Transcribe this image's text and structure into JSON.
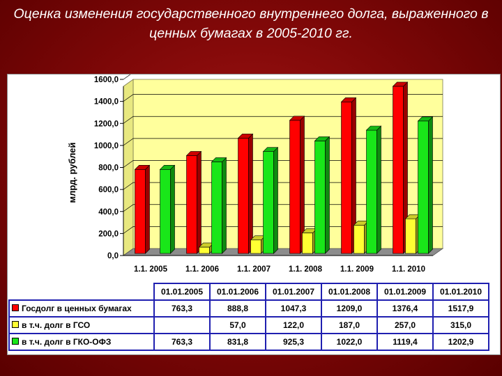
{
  "title": "Оценка изменения государственного внутреннего долга, выраженного в ценных бумагах в 2005-2010 гг.",
  "colors": {
    "red": "#ff0000",
    "yellow": "#ffff33",
    "green": "#19e619",
    "plot_bg": "#ffff9c",
    "floor": "#8c8c8c",
    "table_border": "#1f1fb0"
  },
  "chart_data": {
    "type": "bar",
    "ylabel": "млрд. рублей",
    "ylim": [
      0,
      1600
    ],
    "yticks": [
      "0,0",
      "200,0",
      "400,0",
      "600,0",
      "800,0",
      "1000,0",
      "1200,0",
      "1400,0",
      "1600,0"
    ],
    "categories": [
      "1.1. 2005",
      "1.1. 2006",
      "1.1. 2007",
      "1.1. 2008",
      "1.1. 2009",
      "1.1. 2010"
    ],
    "series": [
      {
        "name": "Госдолг в ценных бумагах",
        "color": "#ff0000",
        "values": [
          763.3,
          888.8,
          1047.3,
          1209.0,
          1376.4,
          1517.9
        ]
      },
      {
        "name": "в т.ч. долг в ГСО",
        "color": "#ffff33",
        "values": [
          null,
          57.0,
          122.0,
          187.0,
          257.0,
          315.0
        ]
      },
      {
        "name": "в т.ч. долг в ГКО-ОФЗ",
        "color": "#19e619",
        "values": [
          763.3,
          831.8,
          925.3,
          1022.0,
          1119.4,
          1202.9
        ]
      }
    ]
  },
  "table": {
    "headers": [
      "01.01.2005",
      "01.01.2006",
      "01.01.2007",
      "01.01.2008",
      "01.01.2009",
      "01.01.2010"
    ],
    "rows": [
      {
        "label": "Госдолг в ценных бумагах",
        "color": "#ff0000",
        "cells": [
          "763,3",
          "888,8",
          "1047,3",
          "1209,0",
          "1376,4",
          "1517,9"
        ]
      },
      {
        "label": "в т.ч. долг в ГСО",
        "color": "#ffff33",
        "cells": [
          "",
          "57,0",
          "122,0",
          "187,0",
          "257,0",
          "315,0"
        ]
      },
      {
        "label": "в т.ч. долг в ГКО-ОФЗ",
        "color": "#19e619",
        "cells": [
          "763,3",
          "831,8",
          "925,3",
          "1022,0",
          "1119,4",
          "1202,9"
        ]
      }
    ]
  }
}
